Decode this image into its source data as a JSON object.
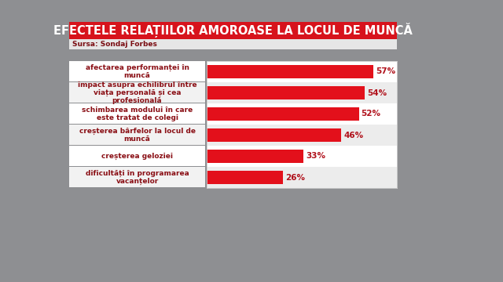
{
  "chart_data": {
    "type": "bar",
    "orientation": "horizontal",
    "title": "EFECTELE RELAȚIILOR AMOROASE LA LOCUL DE MUNCĂ",
    "subtitle": "Sursa: Sondaj Forbes",
    "categories": [
      "afectarea performanței în muncă",
      "impact asupra echilibrul între viața personală și cea profesională",
      "schimbarea modului în care este tratat de colegi",
      "creșterea bârfelor la locul de muncă",
      "creșterea geloziei",
      "dificultăți în programarea vacanțelor"
    ],
    "values": [
      57,
      54,
      52,
      46,
      33,
      26
    ],
    "value_labels": [
      "57%",
      "54%",
      "52%",
      "46%",
      "33%",
      "26%"
    ],
    "data_labels": true,
    "color": "#e3101b",
    "xlim": [
      0,
      65
    ],
    "xticks": [],
    "tick_labels": false,
    "grid": false
  }
}
